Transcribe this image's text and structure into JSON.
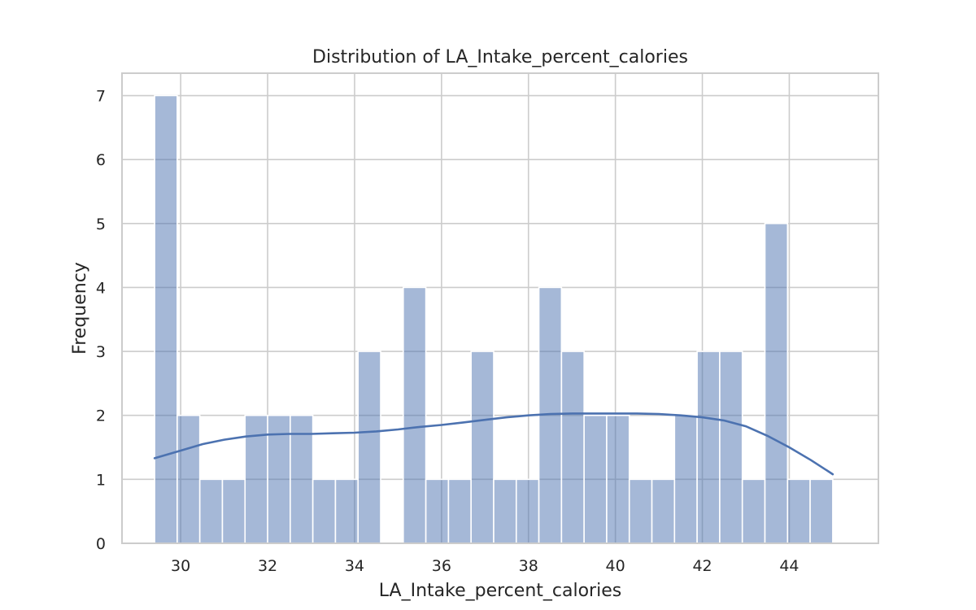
{
  "chart_data": {
    "type": "bar",
    "subtype": "histogram-with-kde",
    "title": "Distribution of LA_Intake_percent_calories",
    "xlabel": "LA_Intake_percent_calories",
    "ylabel": "Frequency",
    "xlim": [
      28.65,
      46.05
    ],
    "ylim": [
      0,
      7.35
    ],
    "xticks": [
      30,
      32,
      34,
      36,
      38,
      40,
      42,
      44
    ],
    "yticks": [
      0,
      1,
      2,
      3,
      4,
      5,
      6,
      7
    ],
    "grid": true,
    "bin_start": 29.4,
    "bin_width": 0.52,
    "values": [
      7,
      2,
      1,
      1,
      2,
      2,
      2,
      1,
      1,
      3,
      0,
      4,
      1,
      1,
      3,
      1,
      1,
      4,
      3,
      2,
      2,
      1,
      1,
      2,
      3,
      3,
      1,
      5,
      1,
      1
    ],
    "kde": {
      "x": [
        29.4,
        30.0,
        30.5,
        31.0,
        31.5,
        32.0,
        32.5,
        33.0,
        33.5,
        34.0,
        34.5,
        35.0,
        35.5,
        36.0,
        36.5,
        37.0,
        37.5,
        38.0,
        38.5,
        39.0,
        39.5,
        40.0,
        40.5,
        41.0,
        41.5,
        42.0,
        42.5,
        43.0,
        43.5,
        44.0,
        44.5,
        45.0
      ],
      "y": [
        1.33,
        1.45,
        1.55,
        1.62,
        1.67,
        1.7,
        1.71,
        1.71,
        1.72,
        1.73,
        1.75,
        1.78,
        1.82,
        1.85,
        1.89,
        1.93,
        1.97,
        2.0,
        2.02,
        2.03,
        2.03,
        2.03,
        2.03,
        2.02,
        2.0,
        1.97,
        1.92,
        1.83,
        1.68,
        1.5,
        1.3,
        1.08
      ],
      "color": "#4c72b0"
    },
    "colors": {
      "bar": "#4c72b0",
      "grid": "#cccccc",
      "text": "#262626"
    }
  }
}
